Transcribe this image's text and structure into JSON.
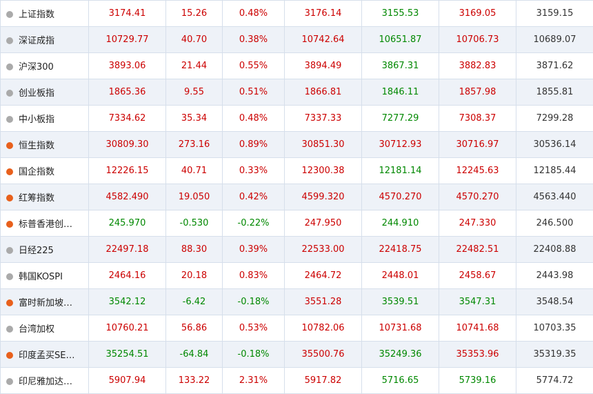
{
  "table": {
    "rows": [
      {
        "dot": "#aaaaaa",
        "cells": [
          "上证指数",
          "3174.41",
          "15.26",
          "0.48%",
          "3176.14",
          "3155.53",
          "3169.05",
          "3159.15"
        ]
      },
      {
        "dot": "#aaaaaa",
        "cells": [
          "深证成指",
          "10729.77",
          "40.70",
          "0.38%",
          "10742.64",
          "10651.87",
          "10706.73",
          "10689.07"
        ]
      },
      {
        "dot": "#aaaaaa",
        "cells": [
          "沪深300",
          "3893.06",
          "21.44",
          "0.55%",
          "3894.49",
          "3867.31",
          "3882.83",
          "3871.62"
        ]
      },
      {
        "dot": "#aaaaaa",
        "cells": [
          "创业板指",
          "1865.36",
          "9.55",
          "0.51%",
          "1866.81",
          "1846.11",
          "1857.98",
          "1855.81"
        ]
      },
      {
        "dot": "#aaaaaa",
        "cells": [
          "中小板指",
          "7334.62",
          "35.34",
          "0.48%",
          "7337.33",
          "7277.29",
          "7308.37",
          "7299.28"
        ]
      },
      {
        "dot": "#e8601c",
        "cells": [
          "恒生指数",
          "30809.30",
          "273.16",
          "0.89%",
          "30851.30",
          "30712.93",
          "30716.97",
          "30536.14"
        ]
      },
      {
        "dot": "#e8601c",
        "cells": [
          "国企指数",
          "12226.15",
          "40.71",
          "0.33%",
          "12300.38",
          "12181.14",
          "12245.63",
          "12185.44"
        ]
      },
      {
        "dot": "#e8601c",
        "cells": [
          "红筹指数",
          "4582.490",
          "19.050",
          "0.42%",
          "4599.320",
          "4570.270",
          "4570.270",
          "4563.440"
        ]
      },
      {
        "dot": "#e8601c",
        "cells": [
          "标普香港创…",
          "245.970",
          "-0.530",
          "-0.22%",
          "247.950",
          "244.910",
          "247.330",
          "246.500"
        ]
      },
      {
        "dot": "#aaaaaa",
        "cells": [
          "日经225",
          "22497.18",
          "88.30",
          "0.39%",
          "22533.00",
          "22418.75",
          "22482.51",
          "22408.88"
        ]
      },
      {
        "dot": "#aaaaaa",
        "cells": [
          "韩国KOSPI",
          "2464.16",
          "20.18",
          "0.83%",
          "2464.72",
          "2448.01",
          "2458.67",
          "2443.98"
        ]
      },
      {
        "dot": "#e8601c",
        "cells": [
          "富时新加坡…",
          "3542.12",
          "-6.42",
          "-0.18%",
          "3551.28",
          "3539.51",
          "3547.31",
          "3548.54"
        ]
      },
      {
        "dot": "#aaaaaa",
        "cells": [
          "台湾加权",
          "10760.21",
          "56.86",
          "0.53%",
          "10782.06",
          "10731.68",
          "10741.68",
          "10703.35"
        ]
      },
      {
        "dot": "#e8601c",
        "cells": [
          "印度孟买SE…",
          "35254.51",
          "-64.84",
          "-0.18%",
          "35500.76",
          "35249.36",
          "35353.96",
          "35319.35"
        ]
      },
      {
        "dot": "#aaaaaa",
        "cells": [
          "印尼雅加达…",
          "5907.94",
          "133.22",
          "2.31%",
          "5917.82",
          "5716.65",
          "5739.16",
          "5774.72"
        ]
      }
    ]
  }
}
